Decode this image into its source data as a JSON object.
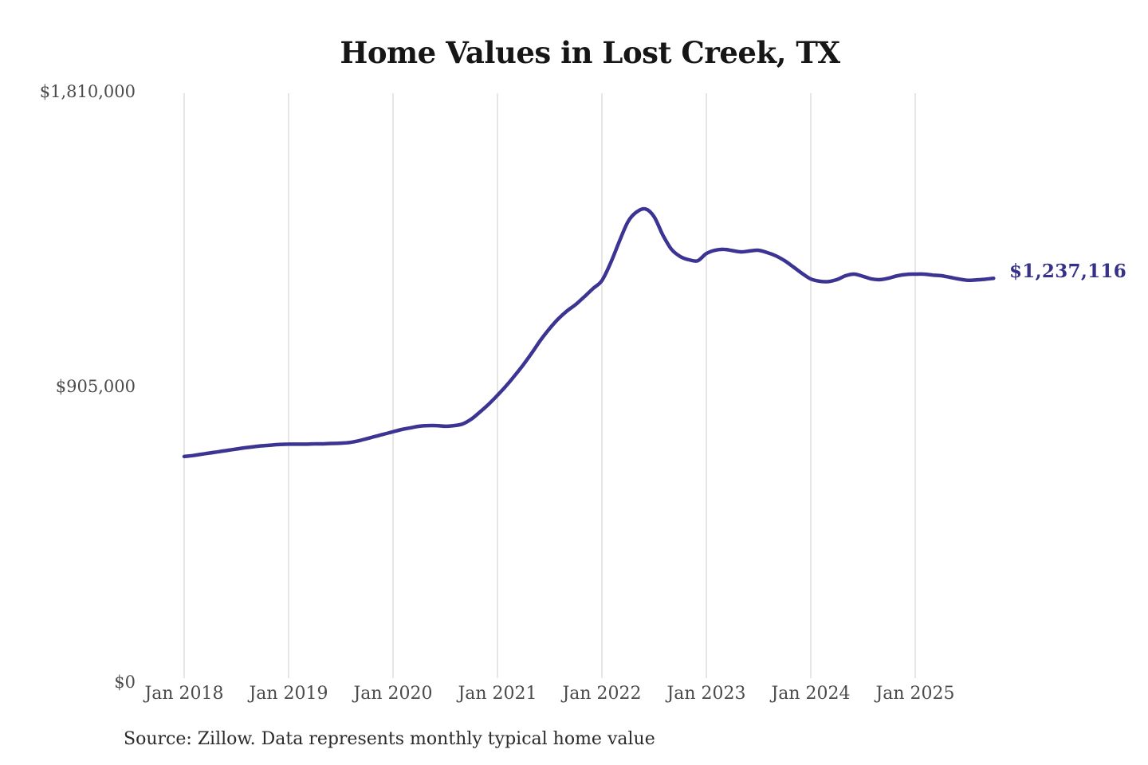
{
  "title": "Home Values in Lost Creek, TX",
  "source_note": "Source: Zillow. Data represents monthly typical home value",
  "colors": {
    "line": "#3b3493",
    "value_label": "#353088",
    "grid": "#cccccc",
    "axis_text": "#4b4b4b",
    "title_text": "#161616"
  },
  "chart_data": {
    "type": "line",
    "title": "Home Values in Lost Creek, TX",
    "xlabel": "",
    "ylabel": "",
    "ylim": [
      0,
      1810000
    ],
    "grid": "vertical-only",
    "legend": "none",
    "x_ticks": [
      "Jan 2018",
      "Jan 2019",
      "Jan 2020",
      "Jan 2021",
      "Jan 2022",
      "Jan 2023",
      "Jan 2024",
      "Jan 2025"
    ],
    "y_ticks": [
      "$1,810,000",
      "$905,000",
      "$0"
    ],
    "y_tick_values": [
      1810000,
      905000,
      0
    ],
    "x_start": "2018-01",
    "x_interval": "monthly",
    "x_end": "2025-10",
    "final_value": 1237116,
    "final_value_label": "$1,237,116",
    "series": [
      {
        "name": "Monthly typical home value",
        "values": [
          690000,
          693000,
          697000,
          701000,
          705000,
          709000,
          713000,
          717000,
          720000,
          723000,
          725000,
          727000,
          728000,
          728000,
          728000,
          729000,
          729000,
          730000,
          731000,
          733000,
          738000,
          745000,
          752000,
          759000,
          766000,
          773000,
          778000,
          783000,
          785000,
          785000,
          783000,
          785000,
          790000,
          805000,
          827000,
          851000,
          878000,
          907000,
          939000,
          973000,
          1010000,
          1049000,
          1083000,
          1113000,
          1137000,
          1157000,
          1181000,
          1206000,
          1230000,
          1284000,
          1350000,
          1411000,
          1441000,
          1450000,
          1426000,
          1370000,
          1326000,
          1304000,
          1294000,
          1291000,
          1313000,
          1323000,
          1326000,
          1322000,
          1318000,
          1321000,
          1323000,
          1316000,
          1306000,
          1291000,
          1272000,
          1252000,
          1235000,
          1228000,
          1227000,
          1233000,
          1245000,
          1250000,
          1243000,
          1235000,
          1233000,
          1238000,
          1245000,
          1249000,
          1250000,
          1250000,
          1247000,
          1245000,
          1240000,
          1235000,
          1231000,
          1232000,
          1234000,
          1237116
        ]
      }
    ]
  }
}
